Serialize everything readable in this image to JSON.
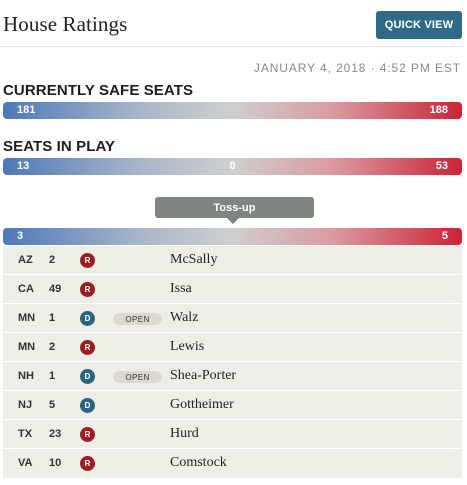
{
  "header": {
    "title": "House Ratings",
    "quick_view_label": "QUICK VIEW",
    "timestamp": "JANUARY 4, 2018 · 4:52 PM EST"
  },
  "colors": {
    "democrat": "#4d79b8",
    "republican": "#cc2334",
    "button": "#2f6a86",
    "tossup_tooltip": "#7f867f"
  },
  "safe_seats": {
    "label": "CURRENTLY SAFE SEATS",
    "dem_count": "181",
    "rep_count": "188"
  },
  "in_play": {
    "label": "SEATS IN PLAY",
    "dem_count": "13",
    "mid_count": "0",
    "rep_count": "53"
  },
  "tossup": {
    "tooltip": "Toss-up",
    "dem_count": "3",
    "rep_count": "5"
  },
  "races": [
    {
      "state": "AZ",
      "district": "2",
      "party": "R",
      "open": "",
      "name": "McSally"
    },
    {
      "state": "CA",
      "district": "49",
      "party": "R",
      "open": "",
      "name": "Issa"
    },
    {
      "state": "MN",
      "district": "1",
      "party": "D",
      "open": "OPEN",
      "name": "Walz"
    },
    {
      "state": "MN",
      "district": "2",
      "party": "R",
      "open": "",
      "name": "Lewis"
    },
    {
      "state": "NH",
      "district": "1",
      "party": "D",
      "open": "OPEN",
      "name": "Shea-Porter"
    },
    {
      "state": "NJ",
      "district": "5",
      "party": "D",
      "open": "",
      "name": "Gottheimer"
    },
    {
      "state": "TX",
      "district": "23",
      "party": "R",
      "open": "",
      "name": "Hurd"
    },
    {
      "state": "VA",
      "district": "10",
      "party": "R",
      "open": "",
      "name": "Comstock"
    }
  ]
}
